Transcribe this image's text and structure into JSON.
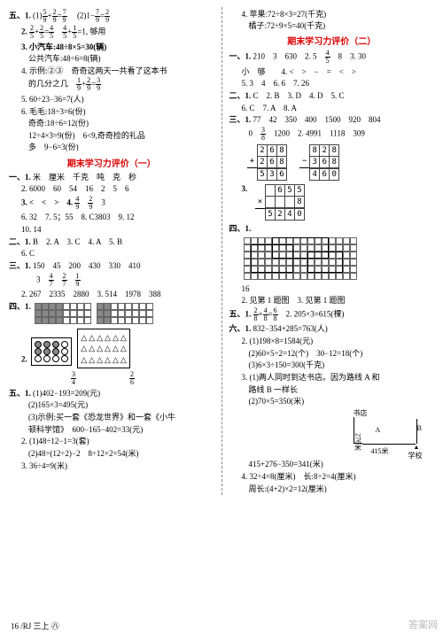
{
  "left": {
    "five": {
      "label": "五、1.",
      "q1a_f1": {
        "n": "5",
        "d": "9"
      },
      "q1a_f2": {
        "n": "2",
        "d": "9"
      },
      "q1a_f3": {
        "n": "7",
        "d": "9"
      },
      "q1b": "(2)1−",
      "q1b_f1": {
        "n": "7",
        "d": "9"
      },
      "q1b_eq": "=",
      "q1b_f2": {
        "n": "2",
        "d": "9"
      },
      "q2": "2.",
      "q2_f1": {
        "n": "2",
        "d": "5"
      },
      "q2_p": "+",
      "q2_f2": {
        "n": "2",
        "d": "5"
      },
      "q2_e": "=",
      "q2_f3": {
        "n": "4",
        "d": "5"
      },
      "q2_sp": "　",
      "q2_f4": {
        "n": "4",
        "d": "5"
      },
      "q2_p2": "+",
      "q2_f5": {
        "n": "1",
        "d": "5"
      },
      "q2_e2": "=1, 够用",
      "q3a": "3. 小汽车:48÷8×5=30(辆)",
      "q3b": "公共汽车:48÷6=8(辆)",
      "q4a": "4. 示例:②③　奇奇这两天一共看了这本书",
      "q4b": "的几分之几　",
      "q4_f1": {
        "n": "1",
        "d": "9"
      },
      "q4_p": "+",
      "q4_f2": {
        "n": "2",
        "d": "9"
      },
      "q4_e": "=",
      "q4_f3": {
        "n": "3",
        "d": "9"
      },
      "q5": "5. 60÷23−36=7(人)",
      "q6a": "6. 毛毛:18÷3=6(份)",
      "q6b": "奇奇:18÷6=12(份)",
      "q6c": "12÷4×3=9(份)　6<9,奇奇捡的礼品",
      "q6d": "多　9−6=3(份)"
    },
    "hdr1": "期末学习力评价（一）",
    "s1": {
      "label": "一、1.",
      "l1": "米　厘米　千克　吨　克　秒",
      "l2": "2. 6000　60　54　16　2　5　6",
      "l3_pre": "3. <　<　>　4.",
      "l3_f1": {
        "n": "4",
        "d": "9"
      },
      "l3_sp": "　",
      "l3_f2": {
        "n": "2",
        "d": "9"
      },
      "l3_num": "　3",
      "l4": "6. 32　7. 5；55　8. C3803　9. 12",
      "l5": "10. 14"
    },
    "s2": {
      "label": "二、1.",
      "text": "B　2. A　3. C　4. A　5. B",
      "l2": "6. C"
    },
    "s3": {
      "label": "三、1.",
      "l1": "150　45　200　430　330　410",
      "l2_pre": "　3　",
      "l2_f1": {
        "n": "4",
        "d": "7"
      },
      "l2_sp": "　",
      "l2_f2": {
        "n": "2",
        "d": "7"
      },
      "l2_sp2": "　",
      "l2_f3": {
        "n": "1",
        "d": "9"
      },
      "l3": "2. 267　2335　2880　3. 514　1978　388"
    },
    "s4_label": "四、1.",
    "grid1": {
      "rows": 3,
      "cols": 8,
      "fill": [
        [
          0,
          0
        ],
        [
          0,
          1
        ],
        [
          0,
          2
        ],
        [
          0,
          3
        ],
        [
          1,
          0
        ],
        [
          1,
          1
        ],
        [
          1,
          2
        ],
        [
          1,
          3
        ],
        [
          2,
          0
        ],
        [
          2,
          1
        ],
        [
          2,
          2
        ],
        [
          2,
          3
        ]
      ]
    },
    "grid2": {
      "rows": 3,
      "cols": 8,
      "fill": [
        [
          0,
          0
        ],
        [
          0,
          1
        ],
        [
          1,
          0
        ],
        [
          1,
          1
        ],
        [
          2,
          0
        ],
        [
          2,
          1
        ]
      ]
    },
    "shapes_label": "2.",
    "circles": {
      "rows": 3,
      "cols": 4
    },
    "circles_frac": {
      "n": "3",
      "d": "4"
    },
    "tris": {
      "rows": 3,
      "cols": 6
    },
    "tris_frac": {
      "n": "2",
      "d": "6"
    },
    "s5": {
      "label": "五、1.",
      "l1": "(1)402−193=209(元)",
      "l2": "(2)165×3=495(元)",
      "l3": "(3)示例:买一套《恐龙世界》和一套《小牛",
      "l4": "顿科学馆》　600−165−402=33(元)",
      "l5": "2. (1)48÷12−1=3(套)",
      "l6": "(2)48÷(12÷2)−2　8÷12×2=54(米)",
      "l7": "3. 36÷4=9(米)"
    }
  },
  "right": {
    "top": {
      "l1": "4. 苹果:72÷8×3=27(千克)",
      "l2": "橘子:72÷9×5=40(千克)"
    },
    "hdr2": "期末学习力评价（二）",
    "r1": {
      "label": "一、1.",
      "l1_a": "210　3　630　2. 5　",
      "l1_f": {
        "n": "4",
        "d": "5"
      },
      "l1_b": "　8　3. 30",
      "l2": "小　够　　4. <　>　−　=　<　>",
      "l3": "5. 3　4　6. 6　7. 26"
    },
    "r2": {
      "label": "二、1.",
      "text": "C　2. B　3. D　4. D　5. C",
      "l2": "6. C　7. A　8. A"
    },
    "r3": {
      "label": "三、1.",
      "l1": "77　42　350　400　1500　920　804",
      "l2_a": "0　",
      "l2_f1": {
        "n": "3",
        "d": "8"
      },
      "l2_b": "　1200　2. 4991　1118　309"
    },
    "calc1": {
      "r1": [
        "",
        "2",
        "6",
        "8"
      ],
      "r2": [
        "+",
        "2",
        "6",
        "8"
      ],
      "r3": [
        "",
        "5",
        "3",
        "6"
      ]
    },
    "calc2": {
      "r1": [
        "",
        "8",
        "2",
        "8"
      ],
      "r2": [
        "−",
        "3",
        "6",
        "8"
      ],
      "r3": [
        "",
        "4",
        "6",
        "0"
      ]
    },
    "calc3_label": "3.",
    "calc3": {
      "r1": [
        "",
        "",
        "6",
        "5",
        "5"
      ],
      "r2": [
        "×",
        "",
        "",
        "",
        "8"
      ],
      "r3": [
        "",
        "5",
        "2",
        "4",
        "0"
      ]
    },
    "r4_label": "四、1.",
    "grid3": {
      "rows": 6,
      "cols": 16
    },
    "r4_sub": "16",
    "r4_l1": "2. 见第 1 题图　3. 见第 1 题图",
    "r5": {
      "label": "五、1.",
      "f1": {
        "n": "2",
        "d": "8"
      },
      "p": "+",
      "f2": {
        "n": "4",
        "d": "8"
      },
      "e": "=",
      "f3": {
        "n": "6",
        "d": "8"
      },
      "l1b": "　2. 205×3=615(棵)"
    },
    "r6": {
      "label": "六、1.",
      "l1": "832−354+285=763(人)",
      "l2": "2. (1)198×8=1584(元)",
      "l3": "(2)60×5÷2=12(个)　30−12=18(个)",
      "l4": "(3)6×3÷150=300(千克)",
      "l5": "3. (1)两人同时到达书店。因为路线 A 和",
      "l6": "路线 B 一样长",
      "l7": "(2)70×5=350(米)",
      "diag": {
        "shop": "书店",
        "a": "A",
        "b": "B",
        "school": "学校",
        "d1": "276米",
        "d2": "415米"
      },
      "l8": "415+276−350=341(米)",
      "l9": "4. 32÷4=8(厘米)　长:8÷2=4(厘米)",
      "l10": "周长:(4+2)×2=12(厘米)"
    }
  },
  "footer": "16 /RJ 三上 ㊇",
  "watermark": "答案网"
}
